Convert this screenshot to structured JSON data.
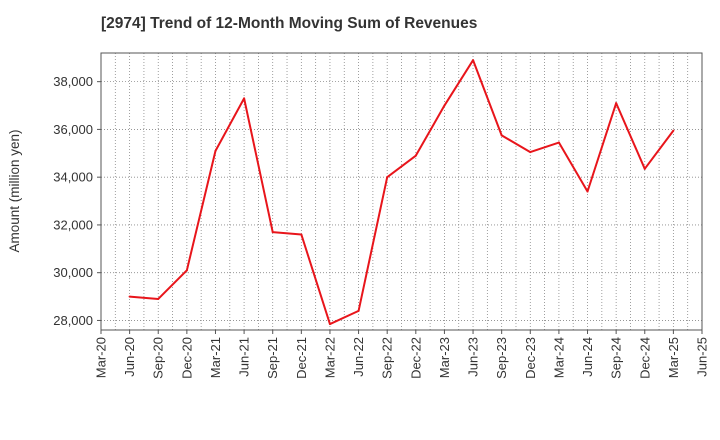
{
  "chart_data": {
    "type": "line",
    "title": "[2974]  Trend of 12-Month Moving Sum of Revenues",
    "xlabel": "",
    "ylabel": "Amount (million yen)",
    "x_tick_labels": [
      "Mar-20",
      "Jun-20",
      "Sep-20",
      "Dec-20",
      "Mar-21",
      "Jun-21",
      "Sep-21",
      "Dec-21",
      "Mar-22",
      "Jun-22",
      "Sep-22",
      "Dec-22",
      "Mar-23",
      "Jun-23",
      "Sep-23",
      "Dec-23",
      "Mar-24",
      "Jun-24",
      "Sep-24",
      "Dec-24",
      "Mar-25",
      "Jun-25"
    ],
    "y_ticks": [
      28000,
      30000,
      32000,
      34000,
      36000,
      38000
    ],
    "y_tick_labels": [
      "28,000",
      "30,000",
      "32,000",
      "34,000",
      "36,000",
      "38,000"
    ],
    "ylim": [
      27600,
      39200
    ],
    "grid": true,
    "line_color": "#e8151b",
    "series": [
      {
        "x": [
          "Jun-20",
          "Sep-20",
          "Dec-20",
          "Mar-21",
          "Jun-21",
          "Sep-21",
          "Dec-21",
          "Mar-22",
          "Jun-22",
          "Sep-22",
          "Dec-22",
          "Mar-23",
          "Jun-23",
          "Sep-23",
          "Dec-23",
          "Mar-24",
          "Jun-24",
          "Sep-24",
          "Dec-24",
          "Mar-25"
        ],
        "values": [
          29000,
          28900,
          30100,
          35100,
          37300,
          31700,
          31600,
          27850,
          28400,
          34000,
          34900,
          37000,
          38900,
          35750,
          35050,
          35450,
          33400,
          37100,
          34350,
          35950
        ]
      }
    ]
  }
}
